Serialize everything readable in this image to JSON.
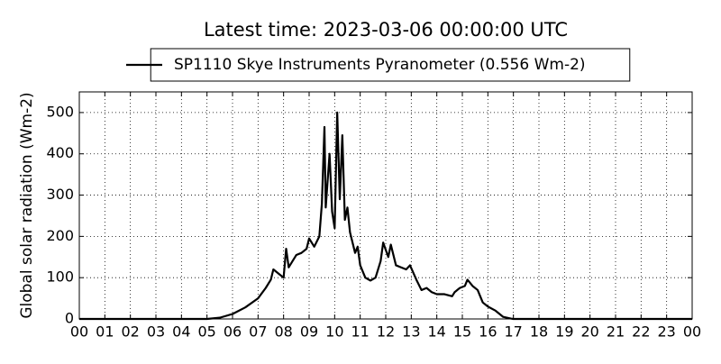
{
  "chart_data": {
    "type": "line",
    "title": "Latest time: 2023-03-06 00:00:00 UTC",
    "y_label": "Global solar radiation (Wm-2)",
    "x": [
      0,
      5.0,
      5.5,
      6.0,
      6.5,
      7.0,
      7.3,
      7.5,
      7.6,
      7.8,
      8.0,
      8.1,
      8.2,
      8.5,
      8.7,
      8.9,
      9.0,
      9.2,
      9.4,
      9.5,
      9.6,
      9.65,
      9.8,
      9.9,
      10.0,
      10.1,
      10.2,
      10.3,
      10.4,
      10.5,
      10.6,
      10.8,
      10.9,
      11.0,
      11.2,
      11.4,
      11.6,
      11.8,
      11.9,
      12.1,
      12.2,
      12.4,
      12.6,
      12.8,
      12.95,
      13.2,
      13.4,
      13.6,
      13.8,
      14.0,
      14.3,
      14.6,
      14.7,
      14.9,
      15.1,
      15.2,
      15.4,
      15.6,
      15.8,
      16.0,
      16.3,
      16.6,
      16.9,
      17.0,
      24
    ],
    "series": [
      {
        "name": "SP1110 Skye Instruments Pyranometer (0.556 Wm-2)",
        "color": "#000000",
        "values": [
          0,
          0,
          3,
          12,
          28,
          50,
          75,
          95,
          120,
          110,
          100,
          170,
          125,
          155,
          160,
          170,
          195,
          175,
          200,
          280,
          465,
          270,
          400,
          260,
          220,
          500,
          290,
          445,
          240,
          270,
          210,
          160,
          175,
          130,
          100,
          93,
          100,
          140,
          185,
          150,
          180,
          130,
          125,
          120,
          130,
          95,
          70,
          75,
          65,
          60,
          60,
          55,
          65,
          75,
          80,
          95,
          80,
          70,
          40,
          30,
          20,
          5,
          1,
          0,
          0
        ]
      }
    ],
    "xlim": [
      0,
      24
    ],
    "xticks": [
      {
        "value": 0,
        "label": "00"
      },
      {
        "value": 1,
        "label": "01"
      },
      {
        "value": 2,
        "label": "02"
      },
      {
        "value": 3,
        "label": "03"
      },
      {
        "value": 4,
        "label": "04"
      },
      {
        "value": 5,
        "label": "05"
      },
      {
        "value": 6,
        "label": "06"
      },
      {
        "value": 7,
        "label": "07"
      },
      {
        "value": 8,
        "label": "08"
      },
      {
        "value": 9,
        "label": "09"
      },
      10,
      11,
      12,
      13,
      14,
      15,
      16,
      17,
      18,
      19,
      20,
      21,
      22,
      23,
      {
        "value": 24,
        "label": "00"
      }
    ],
    "ylim": [
      0,
      550
    ],
    "yticks": [
      0,
      100,
      200,
      300,
      400,
      500
    ],
    "grid": true,
    "legend": "upper center"
  }
}
